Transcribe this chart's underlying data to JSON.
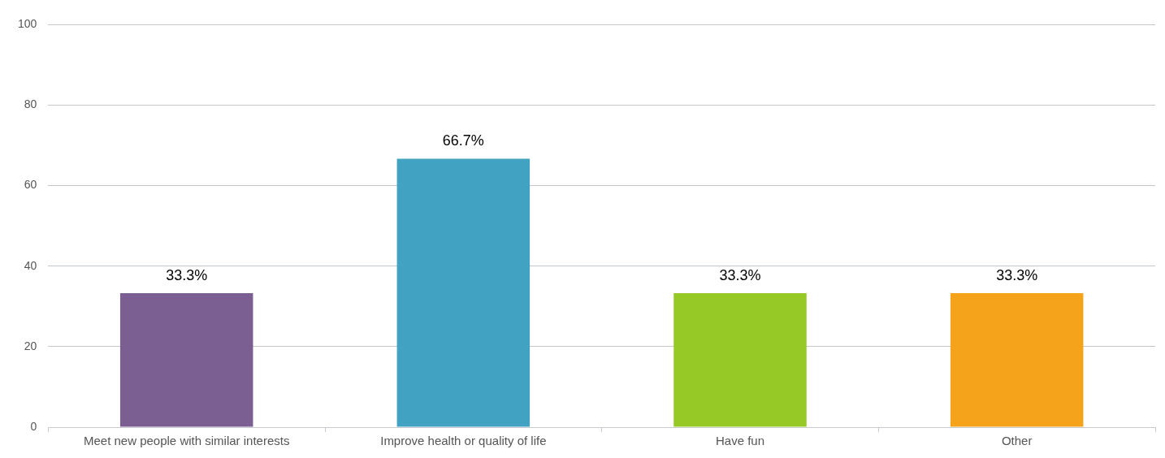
{
  "chart_data": {
    "type": "bar",
    "categories": [
      "Meet new people with similar interests",
      "Improve health or quality of life",
      "Have fun",
      "Other"
    ],
    "values": [
      33.3,
      66.7,
      33.3,
      33.3
    ],
    "colors": [
      "#7b5f93",
      "#41a2c2",
      "#97c926",
      "#f4a31b"
    ],
    "value_labels": [
      "33.3%",
      "66.7%",
      "33.3%",
      "33.3%"
    ],
    "ylim": [
      0,
      100
    ],
    "yticks": [
      0,
      20,
      40,
      60,
      80,
      100
    ],
    "grid": "y",
    "legend": false
  }
}
